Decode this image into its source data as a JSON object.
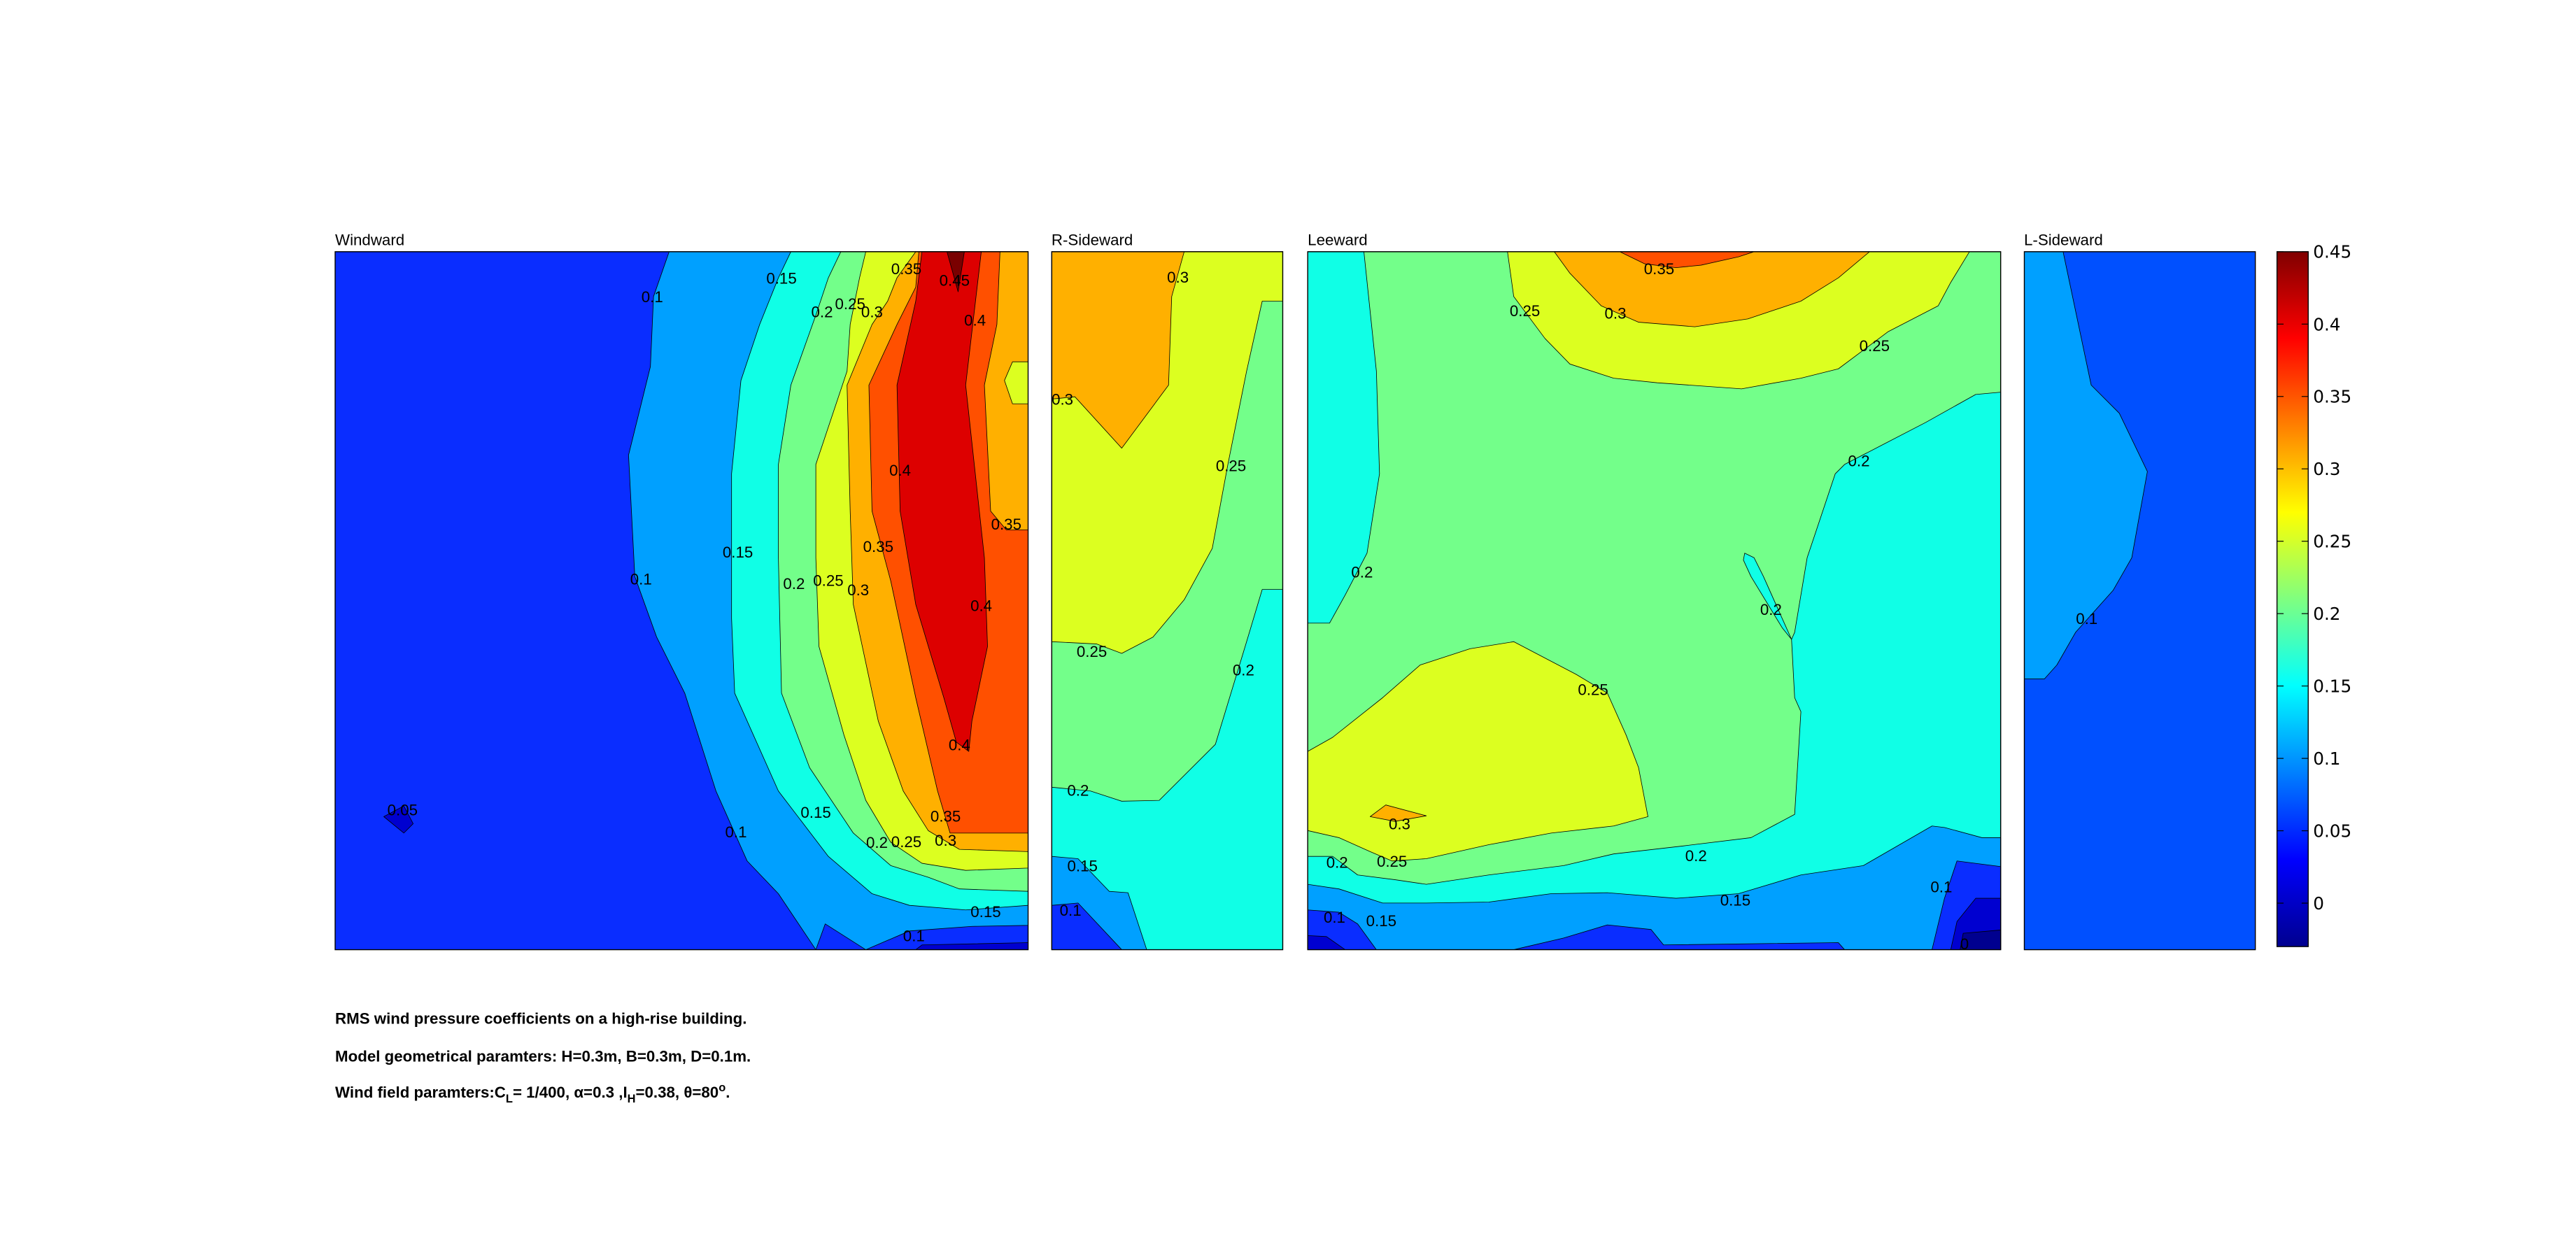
{
  "chart_data": {
    "type": "contour",
    "colormap": "jet",
    "color_limits": [
      -0.03,
      0.45
    ],
    "contour_levels": [
      0,
      0.05,
      0.1,
      0.15,
      0.2,
      0.25,
      0.3,
      0.35,
      0.4,
      0.45
    ],
    "colorbar": {
      "placement": "right",
      "ticks": [
        "0.45",
        "0.4",
        "0.35",
        "0.3",
        "0.25",
        "0.2",
        "0.15",
        "0.1",
        "0.05",
        "0"
      ]
    },
    "band_colors": {
      "below_0": "#00008F",
      "0_0.05": "#0000D0",
      "0.05_0.1": "#0A2DFF",
      "0.1_0.15": "#00A0FF",
      "0.15_0.2": "#10FFE6",
      "0.2_0.25": "#73FF8A",
      "0.25_0.3": "#DCFF20",
      "0.3_0.35": "#FFB000",
      "0.35_0.4": "#FF5000",
      "0.4_0.45": "#DD0000",
      "above_0.45": "#7A0000"
    },
    "panels": [
      {
        "title": "Windward",
        "contour_labels": [
          "0.1",
          "0.15",
          "0.2",
          "0.25",
          "0.3",
          "0.35",
          "0.45",
          "0.4",
          "0.4",
          "0.35",
          "0.15",
          "0.1",
          "0.2",
          "0.25",
          "0.3",
          "0.35",
          "0.4",
          "0.4",
          "0.05",
          "0.15",
          "0.1",
          "0.35",
          "0.2",
          "0.25",
          "0.3",
          "0.15",
          "0.1"
        ]
      },
      {
        "title": "R-Sideward",
        "contour_labels": [
          "0.3",
          "0.3",
          "0.25",
          "0.25",
          "0.2",
          "0.2",
          "0.15",
          "0.1"
        ]
      },
      {
        "title": "Leeward",
        "contour_labels": [
          "0.35",
          "0.25",
          "0.3",
          "0.25",
          "0.2",
          "0.2",
          "0.2",
          "0.25",
          "0.3",
          "0.2",
          "0.25",
          "0.2",
          "0.1",
          "0.15",
          "0.1",
          "0.15",
          "0"
        ]
      },
      {
        "title": "L-Sideward",
        "contour_labels": [
          "0.1"
        ]
      }
    ]
  },
  "caption": {
    "line1": "RMS wind pressure coefficients on a high-rise building.",
    "line2": "Model geometrical paramters: H=0.3m, B=0.3m, D=0.1m.",
    "line3": {
      "part1": "Wind field paramters:C",
      "sub1": "L",
      "part2": "= 1/400, α=0.3 ,I",
      "sub2": "H",
      "part3": "=0.38, θ=80",
      "sup": "o",
      "part4": "."
    }
  }
}
